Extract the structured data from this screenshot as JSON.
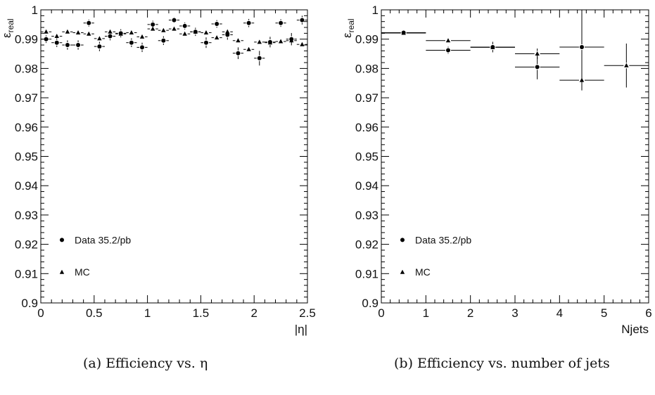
{
  "chart_data": [
    {
      "type": "scatter",
      "ylabel": "ε_real",
      "xlabel": "|η|",
      "xlim": [
        0,
        2.5
      ],
      "ylim": [
        0.9,
        1.0
      ],
      "xticks": [
        "0",
        "0.5",
        "1",
        "1.5",
        "2",
        "2.5"
      ],
      "yticks": [
        "0.9",
        "0.91",
        "0.92",
        "0.93",
        "0.94",
        "0.95",
        "0.96",
        "0.97",
        "0.98",
        "0.99",
        "1"
      ],
      "grid": false,
      "legend_position": "bottom-left",
      "caption": "(a) Efficiency vs. η",
      "series": [
        {
          "name": "Data 35.2/pb",
          "marker": "circle",
          "x": [
            0.05,
            0.15,
            0.25,
            0.35,
            0.45,
            0.55,
            0.65,
            0.75,
            0.85,
            0.95,
            1.05,
            1.15,
            1.25,
            1.35,
            1.45,
            1.55,
            1.65,
            1.75,
            1.85,
            1.95,
            2.05,
            2.15,
            2.25,
            2.35,
            2.45
          ],
          "y": [
            0.99,
            0.9888,
            0.988,
            0.988,
            0.9955,
            0.9875,
            0.991,
            0.992,
            0.9888,
            0.9872,
            0.995,
            0.9895,
            0.9965,
            0.9945,
            0.9925,
            0.9888,
            0.9952,
            0.9915,
            0.9852,
            0.9955,
            0.9835,
            0.989,
            0.9955,
            0.99,
            0.9965
          ],
          "err": [
            0.0013,
            0.0015,
            0.0016,
            0.0016,
            0.0012,
            0.0016,
            0.0014,
            0.0014,
            0.0015,
            0.0016,
            0.0013,
            0.0015,
            0.001,
            0.0012,
            0.0014,
            0.0018,
            0.0013,
            0.0017,
            0.002,
            0.0014,
            0.0025,
            0.0018,
            0.0013,
            0.0021,
            0.0015
          ]
        },
        {
          "name": "MC",
          "marker": "triangle",
          "x": [
            0.05,
            0.15,
            0.25,
            0.35,
            0.45,
            0.55,
            0.65,
            0.75,
            0.85,
            0.95,
            1.05,
            1.15,
            1.25,
            1.35,
            1.45,
            1.55,
            1.65,
            1.75,
            1.85,
            1.95,
            2.05,
            2.15,
            2.25,
            2.35,
            2.45
          ],
          "y": [
            0.9925,
            0.991,
            0.9925,
            0.9922,
            0.9918,
            0.9902,
            0.9925,
            0.9918,
            0.9922,
            0.9908,
            0.9935,
            0.993,
            0.9935,
            0.9918,
            0.9925,
            0.9922,
            0.9905,
            0.9925,
            0.9895,
            0.9865,
            0.989,
            0.9888,
            0.9892,
            0.9895,
            0.9882
          ],
          "err": [
            0.0006,
            0.0006,
            0.0006,
            0.0006,
            0.0006,
            0.0006,
            0.0006,
            0.0006,
            0.0006,
            0.0006,
            0.0006,
            0.0006,
            0.0006,
            0.0006,
            0.0006,
            0.0006,
            0.0006,
            0.0006,
            0.0007,
            0.0007,
            0.0007,
            0.0007,
            0.0007,
            0.0007,
            0.0007
          ]
        }
      ]
    },
    {
      "type": "scatter",
      "ylabel": "ε_real",
      "xlabel": "Njets",
      "xlim": [
        0,
        6
      ],
      "ylim": [
        0.9,
        1.0
      ],
      "xticks": [
        "0",
        "1",
        "2",
        "3",
        "4",
        "5",
        "6"
      ],
      "yticks": [
        "0.9",
        "0.91",
        "0.92",
        "0.93",
        "0.94",
        "0.95",
        "0.96",
        "0.97",
        "0.98",
        "0.99",
        "1"
      ],
      "grid": false,
      "legend_position": "bottom-left",
      "caption": "(b) Efficiency vs. number of jets",
      "series": [
        {
          "name": "Data 35.2/pb",
          "marker": "circle",
          "x": [
            0.5,
            1.5,
            2.5,
            3.5,
            4.5
          ],
          "y": [
            0.9922,
            0.9862,
            0.9873,
            0.9805,
            0.9873
          ],
          "err": [
            0.0004,
            0.0012,
            0.0018,
            0.0042,
            0.0127
          ]
        },
        {
          "name": "MC",
          "marker": "triangle",
          "x": [
            0.5,
            1.5,
            2.5,
            3.5,
            4.5,
            5.5
          ],
          "y": [
            0.9921,
            0.9895,
            0.9872,
            0.985,
            0.976,
            0.981
          ],
          "err": [
            0.0003,
            0.0005,
            0.0008,
            0.0018,
            0.0035,
            0.0075
          ]
        }
      ]
    }
  ]
}
